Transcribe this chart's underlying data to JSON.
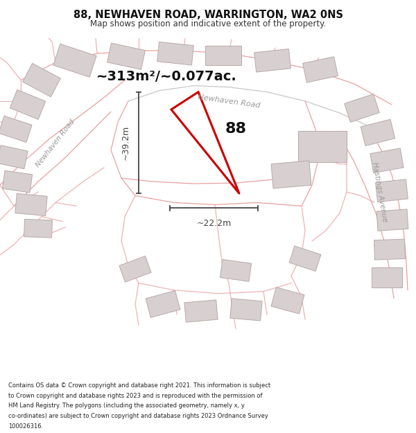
{
  "title": "88, NEWHAVEN ROAD, WARRINGTON, WA2 0NS",
  "subtitle": "Map shows position and indicative extent of the property.",
  "area_text": "~313m²/~0.077ac.",
  "number_label": "88",
  "dim_horizontal": "~22.2m",
  "dim_vertical": "~39.2m",
  "road_label_newhaven_top": "Newhaven Road",
  "road_label_newhaven_left": "Newhaven Road",
  "road_label_hastings": "Hastings Avenue",
  "footer_lines": [
    "Contains OS data © Crown copyright and database right 2021. This information is subject",
    "to Crown copyright and database rights 2023 and is reproduced with the permission of",
    "HM Land Registry. The polygons (including the associated geometry, namely x, y",
    "co-ordinates) are subject to Crown copyright and database rights 2023 Ordnance Survey",
    "100026316."
  ],
  "map_bg": "#f7f2f2",
  "plot_color_stroke": "#cc0000",
  "building_fill": "#d8d0d0",
  "building_stroke": "#b8a8a8",
  "road_stroke": "#e8a0a0",
  "dim_color": "#444444",
  "street_label_color": "#999999",
  "white": "#ffffff"
}
